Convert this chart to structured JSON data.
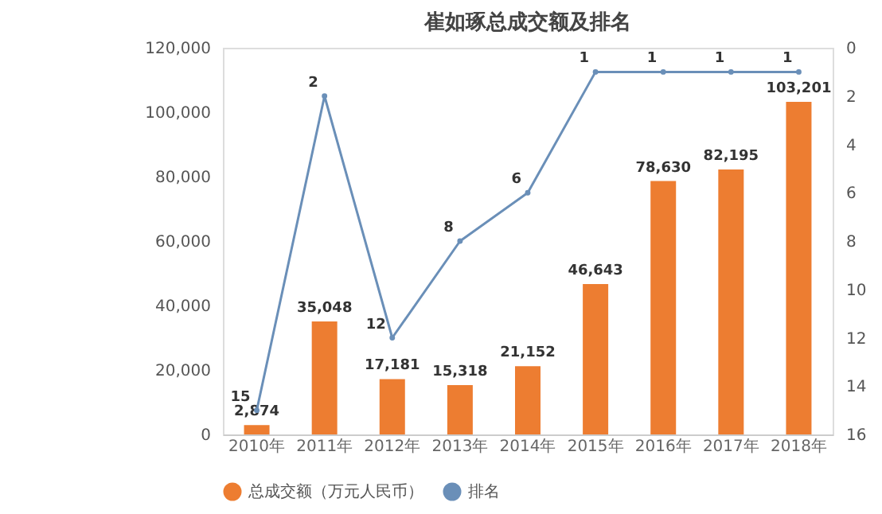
{
  "chart_data": {
    "type": "bar",
    "title": "崔如琢总成交额及排名",
    "categories": [
      "2010年",
      "2011年",
      "2012年",
      "2013年",
      "2014年",
      "2015年",
      "2016年",
      "2017年",
      "2018年"
    ],
    "series": [
      {
        "name": "总成交额（万元人民币）",
        "color": "#ed7d31",
        "values": [
          2874,
          35048,
          17181,
          15318,
          21152,
          46643,
          78630,
          82195,
          103201
        ],
        "value_labels": [
          "2,874",
          "35,048",
          "17,181",
          "15,318",
          "21,152",
          "46,643",
          "78,630",
          "82,195",
          "103,201"
        ]
      },
      {
        "name": "排名",
        "type": "line",
        "axis": "y2",
        "color": "#6a8fb8",
        "values": [
          15,
          2,
          12,
          8,
          6,
          1,
          1,
          1,
          1
        ]
      }
    ],
    "ylim": [
      0,
      120000
    ],
    "yticks": [
      {
        "value": 0,
        "label": "0"
      },
      {
        "value": 20000,
        "label": "20,000"
      },
      {
        "value": 40000,
        "label": "40,000"
      },
      {
        "value": 60000,
        "label": "60,000"
      },
      {
        "value": 80000,
        "label": "80,000"
      },
      {
        "value": 100000,
        "label": "100,000"
      },
      {
        "value": 120000,
        "label": "120,000"
      }
    ],
    "y2lim": [
      16,
      0
    ],
    "y2ticks": [
      0,
      2,
      4,
      6,
      8,
      10,
      12,
      14,
      16
    ],
    "data_labels": true,
    "legend": "bottom",
    "grid": false,
    "marker": "circle",
    "line_style": "solid"
  }
}
